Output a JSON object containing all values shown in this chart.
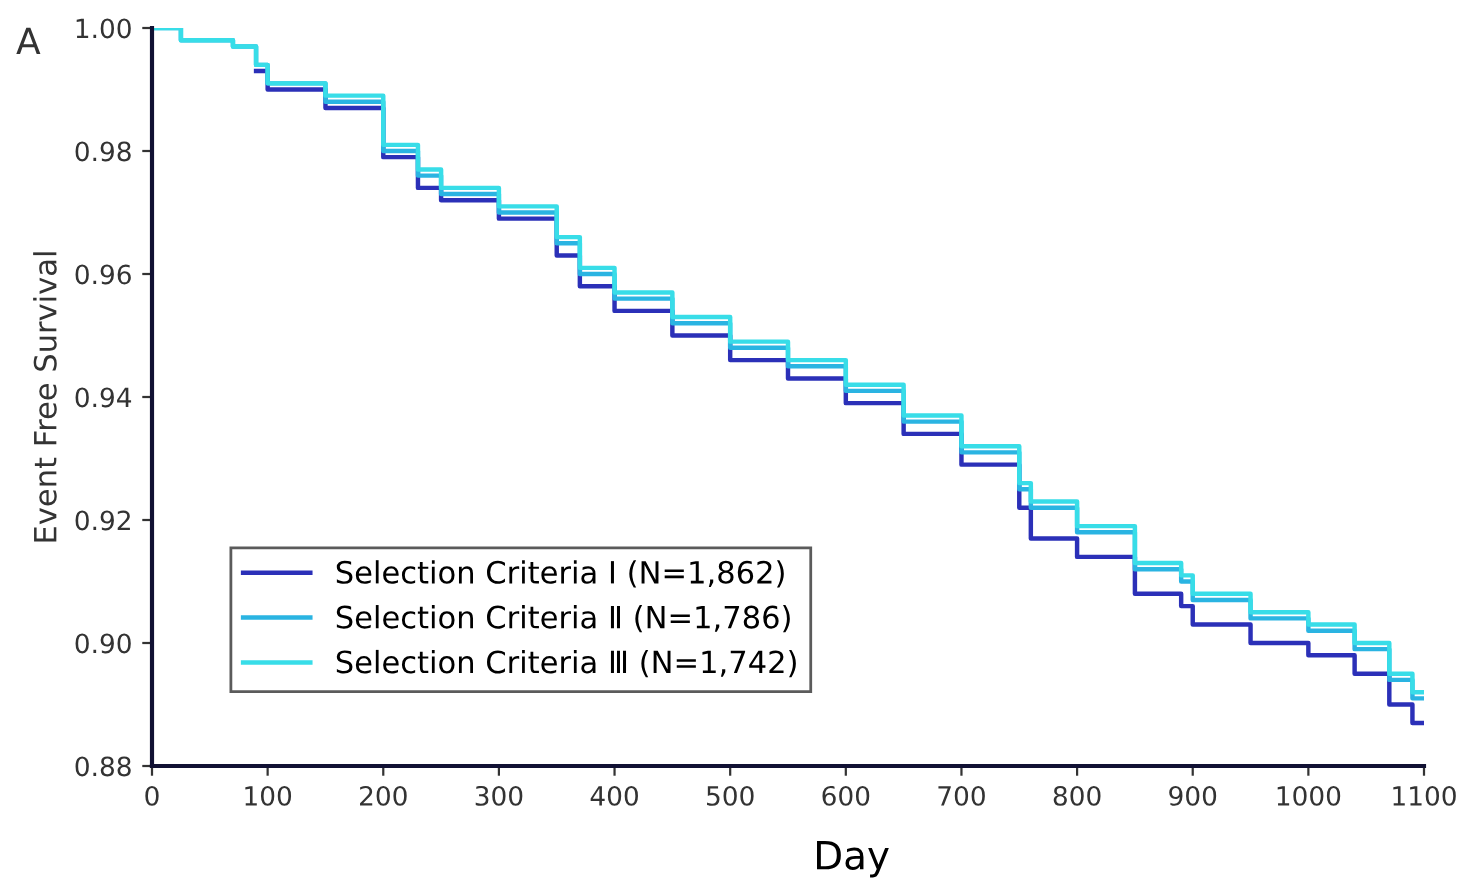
{
  "chart_data": {
    "type": "step",
    "xlabel": "Day",
    "ylabel": "Event Free Survival",
    "annotations": [
      "A"
    ],
    "x": [
      0,
      25,
      70,
      90,
      100,
      150,
      200,
      230,
      250,
      300,
      350,
      370,
      400,
      450,
      500,
      550,
      600,
      650,
      700,
      750,
      760,
      800,
      850,
      890,
      900,
      950,
      1000,
      1040,
      1070,
      1090,
      1100
    ],
    "series": [
      {
        "name": "Selection Criteria Ⅰ (N=1,862)",
        "color": "#2b30b8",
        "values": [
          null,
          null,
          null,
          0.993,
          0.99,
          0.987,
          0.979,
          0.974,
          0.972,
          0.969,
          0.963,
          0.958,
          0.954,
          0.95,
          0.946,
          0.943,
          0.939,
          0.934,
          0.929,
          0.922,
          0.917,
          0.914,
          0.908,
          0.906,
          0.903,
          0.9,
          0.898,
          0.895,
          0.89,
          0.887,
          0.887
        ]
      },
      {
        "name": "Selection Criteria Ⅱ (N=1,786)",
        "color": "#2ab4e2",
        "values": [
          1.0,
          0.998,
          0.997,
          0.994,
          0.991,
          0.988,
          0.98,
          0.976,
          0.973,
          0.97,
          0.965,
          0.96,
          0.956,
          0.952,
          0.948,
          0.945,
          0.941,
          0.936,
          0.931,
          0.925,
          0.922,
          0.918,
          0.912,
          0.91,
          0.907,
          0.904,
          0.902,
          0.899,
          0.894,
          0.891,
          0.891
        ]
      },
      {
        "name": "Selection Criteria Ⅲ (N=1,742)",
        "color": "#38dde8",
        "values": [
          1.0,
          0.998,
          0.997,
          0.994,
          0.991,
          0.989,
          0.981,
          0.977,
          0.974,
          0.971,
          0.966,
          0.961,
          0.957,
          0.953,
          0.949,
          0.946,
          0.942,
          0.937,
          0.932,
          0.926,
          0.923,
          0.919,
          0.913,
          0.911,
          0.908,
          0.905,
          0.903,
          0.9,
          0.895,
          0.892,
          0.892
        ]
      }
    ],
    "xlim": [
      0,
      1100
    ],
    "xticks": [
      0,
      100,
      200,
      300,
      400,
      500,
      600,
      700,
      800,
      900,
      1000,
      1100
    ],
    "ylim": [
      0.88,
      1.0
    ],
    "yticks": [
      {
        "value": 0.88,
        "label": "0.88"
      },
      {
        "value": 0.9,
        "label": "0.90"
      },
      {
        "value": 0.92,
        "label": "0.92"
      },
      {
        "value": 0.94,
        "label": "0.94"
      },
      {
        "value": 0.96,
        "label": "0.96"
      },
      {
        "value": 0.98,
        "label": "0.98"
      },
      {
        "value": 1.0,
        "label": "1.00"
      }
    ],
    "grid": false,
    "legend": "bottom left"
  }
}
